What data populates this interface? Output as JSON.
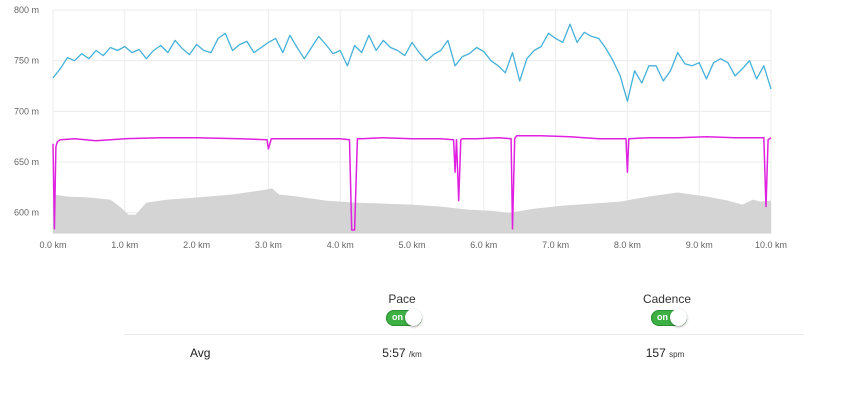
{
  "chart_data": {
    "type": "line",
    "x_unit_label": "km",
    "x_ticks": [
      "0.0 km",
      "1.0 km",
      "2.0 km",
      "3.0 km",
      "4.0 km",
      "5.0 km",
      "6.0 km",
      "7.0 km",
      "8.0 km",
      "9.0 km",
      "10.0 km"
    ],
    "y_ticks": [
      "800 m",
      "750 m",
      "700 m",
      "650 m",
      "600 m"
    ],
    "xlim": [
      0,
      10
    ],
    "ylim": [
      580,
      800
    ],
    "grid": true,
    "colors": {
      "pace": "#45b1d9",
      "cadence": "#e020e0",
      "elevation": "#d4d4d4"
    },
    "series": [
      {
        "key": "pace",
        "x": [
          0,
          0.1,
          0.2,
          0.3,
          0.4,
          0.5,
          0.6,
          0.7,
          0.8,
          0.9,
          1.0,
          1.1,
          1.2,
          1.3,
          1.4,
          1.5,
          1.6,
          1.7,
          1.8,
          1.9,
          2.0,
          2.1,
          2.2,
          2.3,
          2.4,
          2.5,
          2.6,
          2.7,
          2.8,
          2.9,
          3.0,
          3.1,
          3.2,
          3.3,
          3.4,
          3.5,
          3.6,
          3.7,
          3.8,
          3.9,
          4.0,
          4.1,
          4.2,
          4.3,
          4.4,
          4.5,
          4.6,
          4.7,
          4.8,
          4.9,
          5.0,
          5.1,
          5.2,
          5.3,
          5.4,
          5.5,
          5.6,
          5.7,
          5.8,
          5.9,
          6.0,
          6.1,
          6.2,
          6.3,
          6.4,
          6.5,
          6.6,
          6.7,
          6.8,
          6.9,
          7.0,
          7.1,
          7.2,
          7.3,
          7.4,
          7.5,
          7.6,
          7.7,
          7.8,
          7.9,
          8.0,
          8.1,
          8.2,
          8.3,
          8.4,
          8.5,
          8.6,
          8.7,
          8.8,
          8.9,
          9.0,
          9.1,
          9.2,
          9.3,
          9.4,
          9.5,
          9.6,
          9.7,
          9.8,
          9.9,
          10.0
        ],
        "y": [
          733,
          742,
          753,
          750,
          757,
          752,
          760,
          755,
          763,
          760,
          764,
          758,
          761,
          752,
          760,
          765,
          758,
          770,
          762,
          756,
          766,
          760,
          758,
          772,
          777,
          760,
          766,
          769,
          758,
          763,
          768,
          772,
          758,
          775,
          763,
          752,
          763,
          774,
          766,
          757,
          760,
          745,
          765,
          758,
          775,
          760,
          770,
          763,
          760,
          755,
          768,
          758,
          750,
          756,
          760,
          770,
          745,
          754,
          757,
          763,
          759,
          750,
          745,
          738,
          758,
          730,
          752,
          760,
          764,
          777,
          772,
          768,
          786,
          768,
          778,
          774,
          772,
          762,
          750,
          735,
          710,
          740,
          728,
          745,
          745,
          730,
          740,
          758,
          747,
          745,
          748,
          732,
          748,
          752,
          748,
          735,
          742,
          750,
          732,
          745,
          722
        ]
      },
      {
        "key": "cadence",
        "x": [
          0,
          0.02,
          0.04,
          0.06,
          0.1,
          0.3,
          0.6,
          1.0,
          1.5,
          2.0,
          2.6,
          2.98,
          3.0,
          3.04,
          3.1,
          3.5,
          4.0,
          4.13,
          4.16,
          4.2,
          4.24,
          4.3,
          4.6,
          5.0,
          5.4,
          5.58,
          5.6,
          5.62,
          5.65,
          5.68,
          5.7,
          5.9,
          6.2,
          6.38,
          6.4,
          6.43,
          6.46,
          6.5,
          6.8,
          7.2,
          7.6,
          7.98,
          8.0,
          8.02,
          8.3,
          8.7,
          9.1,
          9.5,
          9.9,
          9.93,
          9.96,
          10.0
        ],
        "y": [
          668,
          584,
          665,
          670,
          672,
          673,
          671,
          673,
          674,
          674,
          673,
          672,
          663,
          673,
          673,
          673,
          673,
          672,
          583,
          583,
          673,
          673,
          674,
          673,
          673,
          672,
          640,
          672,
          612,
          672,
          673,
          673,
          674,
          673,
          584,
          673,
          676,
          676,
          676,
          675,
          673,
          673,
          640,
          673,
          674,
          674,
          675,
          674,
          674,
          606,
          672,
          674
        ]
      },
      {
        "key": "elevation",
        "x": [
          0,
          0.2,
          0.5,
          0.8,
          0.95,
          1.05,
          1.15,
          1.3,
          1.6,
          2.0,
          2.5,
          2.9,
          3.05,
          3.15,
          3.4,
          3.8,
          4.2,
          4.6,
          5.0,
          5.4,
          5.8,
          6.1,
          6.35,
          6.7,
          7.1,
          7.5,
          7.9,
          8.3,
          8.7,
          9.1,
          9.4,
          9.6,
          9.75,
          9.85,
          10.0
        ],
        "y": [
          618,
          616,
          615,
          613,
          605,
          598,
          598,
          610,
          613,
          615,
          618,
          622,
          624,
          618,
          616,
          612,
          610,
          609,
          608,
          606,
          603,
          602,
          600,
          604,
          607,
          609,
          611,
          616,
          620,
          616,
          612,
          608,
          613,
          611,
          612
        ]
      }
    ]
  },
  "stats": {
    "pace": {
      "title": "Pace",
      "toggle_label": "on",
      "avg_value": "5:57",
      "avg_unit": "/km"
    },
    "cadence": {
      "title": "Cadence",
      "toggle_label": "on",
      "avg_value": "157",
      "avg_unit": "spm"
    },
    "row_label": "Avg"
  }
}
